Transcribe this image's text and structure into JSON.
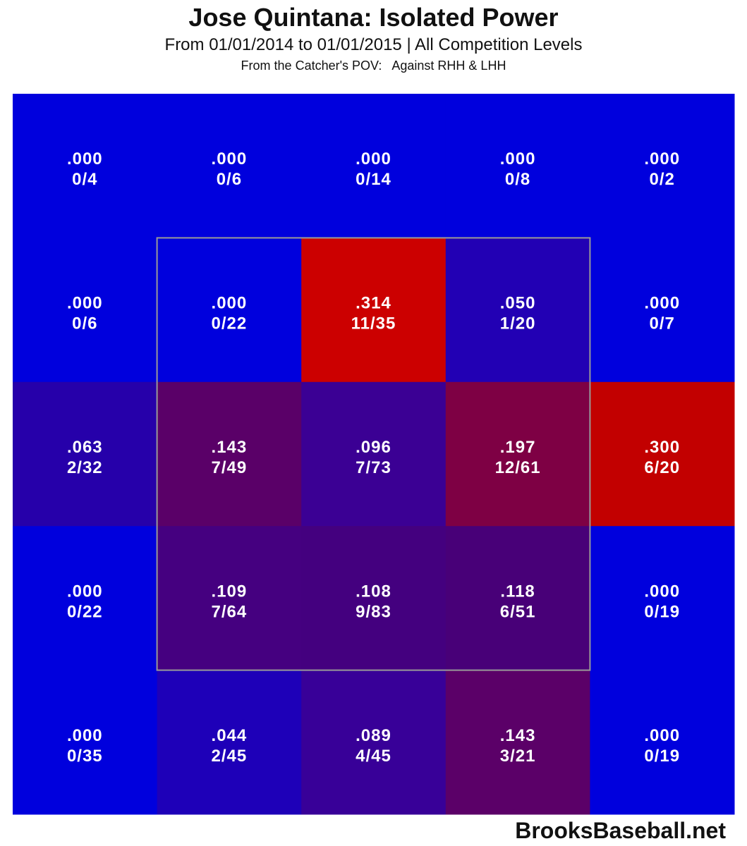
{
  "title": "Jose Quintana: Isolated Power",
  "subtitle": "From 01/01/2014 to 01/01/2015 | All Competition Levels",
  "subtitle2": "From the Catcher's POV:   Against RHH & LHH",
  "watermark": "BrooksBaseball.net",
  "colors": {
    "low": "#0000dd",
    "high": "#cc0000",
    "zone_outline": "#999999"
  },
  "chart_data": {
    "type": "heatmap",
    "rows": 5,
    "cols": 5,
    "strike_zone": {
      "rows": [
        1,
        3
      ],
      "cols": [
        1,
        3
      ]
    },
    "cells": [
      [
        {
          "value": ".000",
          "ratio": "0/4",
          "color": "#0000dd"
        },
        {
          "value": ".000",
          "ratio": "0/6",
          "color": "#0000dd"
        },
        {
          "value": ".000",
          "ratio": "0/14",
          "color": "#0000dd"
        },
        {
          "value": ".000",
          "ratio": "0/8",
          "color": "#0000dd"
        },
        {
          "value": ".000",
          "ratio": "0/2",
          "color": "#0000dd"
        }
      ],
      [
        {
          "value": ".000",
          "ratio": "0/6",
          "color": "#0000dd"
        },
        {
          "value": ".000",
          "ratio": "0/22",
          "color": "#0000dd"
        },
        {
          "value": ".314",
          "ratio": "11/35",
          "color": "#cc0000"
        },
        {
          "value": ".050",
          "ratio": "1/20",
          "color": "#2200b4"
        },
        {
          "value": ".000",
          "ratio": "0/7",
          "color": "#0000dd"
        }
      ],
      [
        {
          "value": ".063",
          "ratio": "2/32",
          "color": "#2600aa"
        },
        {
          "value": ".143",
          "ratio": "7/49",
          "color": "#5a0068"
        },
        {
          "value": ".096",
          "ratio": "7/73",
          "color": "#3b0094"
        },
        {
          "value": ".197",
          "ratio": "12/61",
          "color": "#7e0044"
        },
        {
          "value": ".300",
          "ratio": "6/20",
          "color": "#c20000"
        }
      ],
      [
        {
          "value": ".000",
          "ratio": "0/22",
          "color": "#0000dd"
        },
        {
          "value": ".109",
          "ratio": "7/64",
          "color": "#450080"
        },
        {
          "value": ".108",
          "ratio": "9/83",
          "color": "#44007f"
        },
        {
          "value": ".118",
          "ratio": "6/51",
          "color": "#480078"
        },
        {
          "value": ".000",
          "ratio": "0/19",
          "color": "#0000dd"
        }
      ],
      [
        {
          "value": ".000",
          "ratio": "0/35",
          "color": "#0000dd"
        },
        {
          "value": ".044",
          "ratio": "2/45",
          "color": "#1e00b8"
        },
        {
          "value": ".089",
          "ratio": "4/45",
          "color": "#380098"
        },
        {
          "value": ".143",
          "ratio": "3/21",
          "color": "#5b0068"
        },
        {
          "value": ".000",
          "ratio": "0/19",
          "color": "#0000dd"
        }
      ]
    ]
  }
}
